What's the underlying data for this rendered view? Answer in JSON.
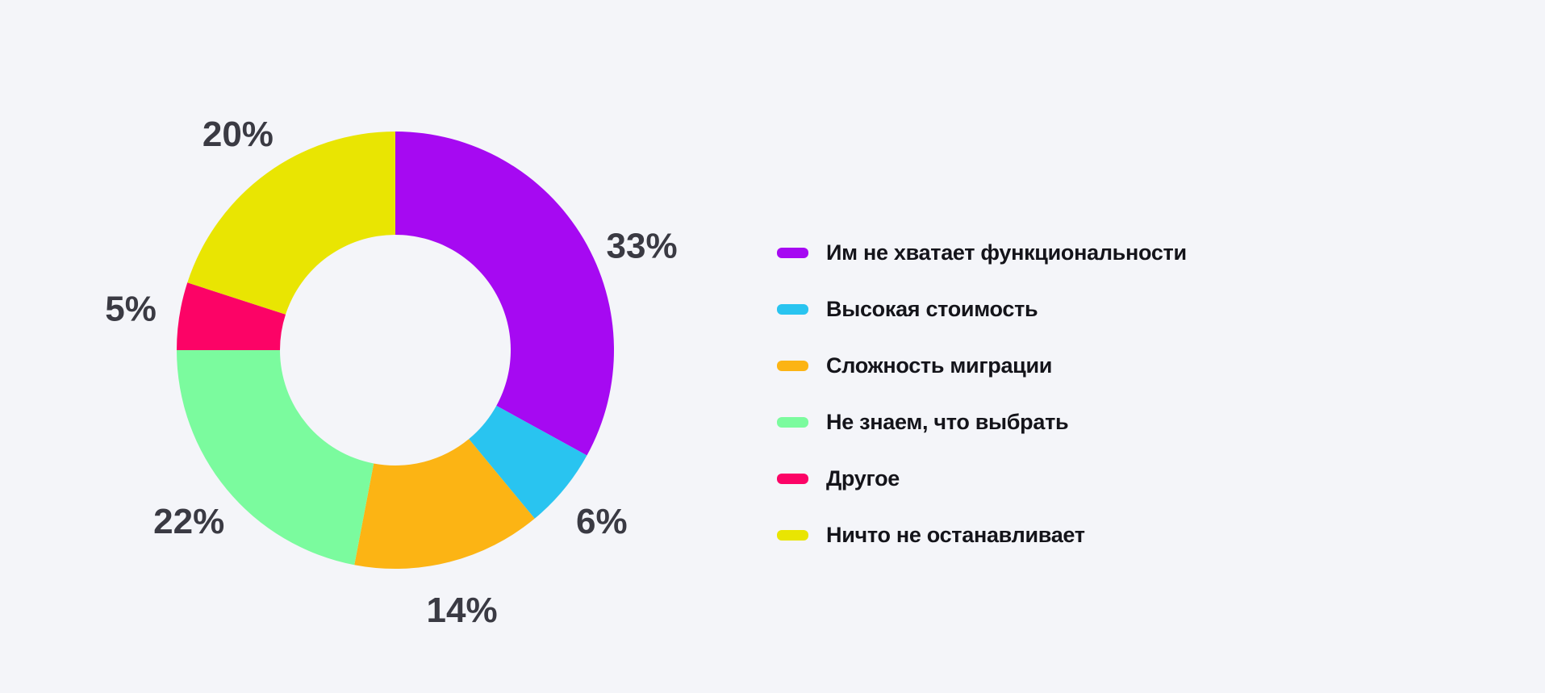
{
  "chart_data": {
    "type": "pie",
    "variant": "donut",
    "title": "",
    "legend_position": "right",
    "direction": "clockwise",
    "start_angle_deg": 0,
    "inner_radius_ratio": 0.53,
    "background": "#F4F5F9",
    "value_label_color": "#3A3A43",
    "legend_text_color": "#14141A",
    "slices": [
      {
        "label": "Им не хватает функциональности",
        "value": 33,
        "display": "33%",
        "color": "#A609F2"
      },
      {
        "label": "Высокая стоимость",
        "value": 6,
        "display": "6%",
        "color": "#29C4F0"
      },
      {
        "label": "Сложность миграции",
        "value": 14,
        "display": "14%",
        "color": "#FCB414"
      },
      {
        "label": "Не знаем, что выбрать",
        "value": 22,
        "display": "22%",
        "color": "#7BFB9E"
      },
      {
        "label": "Другое",
        "value": 5,
        "display": "5%",
        "color": "#FC0366"
      },
      {
        "label": "Ничто не останавливает",
        "value": 20,
        "display": "20%",
        "color": "#E9E502"
      }
    ]
  }
}
